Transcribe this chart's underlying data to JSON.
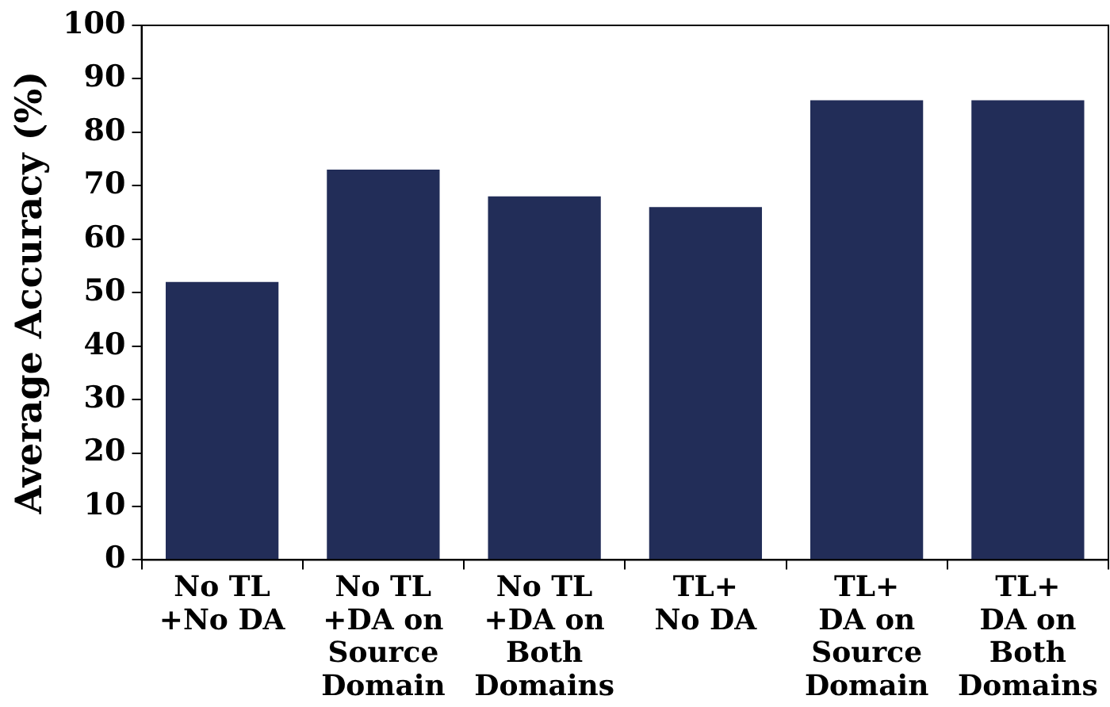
{
  "chart_data": {
    "type": "bar",
    "ylabel": "Average Accuracy (%)",
    "categories": [
      "No TL\n+No DA",
      "No TL\n+DA on\nSource\nDomain",
      "No TL\n+DA on\nBoth\nDomains",
      "TL+\nNo DA",
      "TL+\nDA on\nSource\nDomain",
      "TL+\nDA on\nBoth\nDomains"
    ],
    "values": [
      52,
      73,
      68,
      66,
      86,
      86
    ],
    "color": "#222d58",
    "ylim": [
      0,
      100
    ],
    "yticks": [
      0,
      10,
      20,
      30,
      40,
      50,
      60,
      70,
      80,
      90,
      100
    ],
    "grid": false,
    "legend": false
  }
}
